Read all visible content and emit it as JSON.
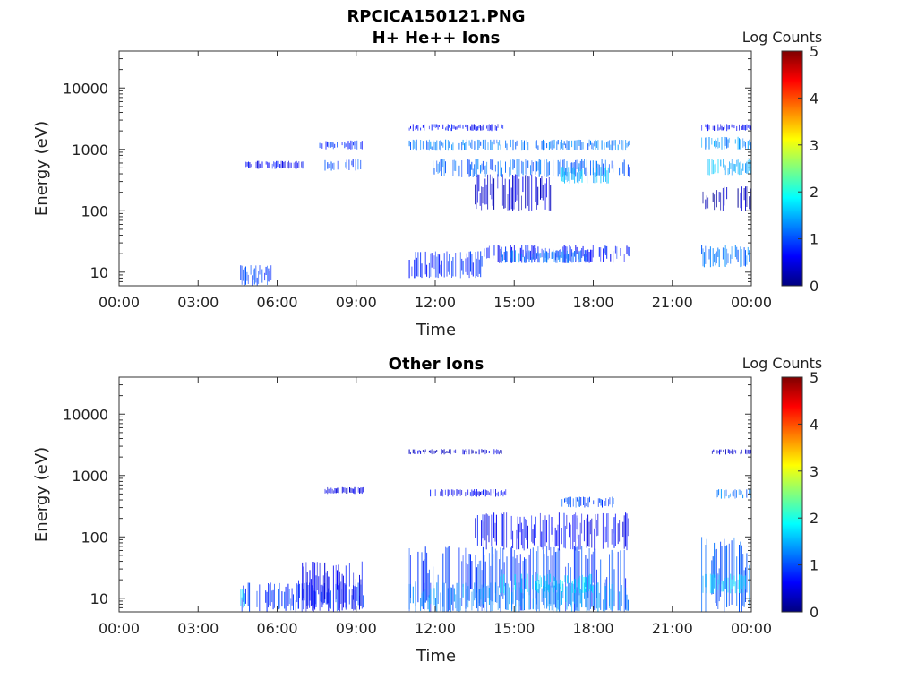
{
  "figure_title": "RPCICA150121.PNG",
  "chart_data": [
    {
      "type": "heatmap",
      "title": "H+ He++ Ions",
      "xlabel": "Time",
      "ylabel": "Energy (eV)",
      "x_ticks": [
        "00:00",
        "03:00",
        "06:00",
        "09:00",
        "12:00",
        "15:00",
        "18:00",
        "21:00",
        "00:00"
      ],
      "xlim_hours": [
        0,
        24
      ],
      "y_scale": "log",
      "ylim": [
        6,
        40000
      ],
      "y_ticks": [
        10,
        100,
        1000,
        10000
      ],
      "y_tick_labels": [
        "10",
        "100",
        "1000",
        "10000"
      ],
      "colorbar": {
        "label": "Log Counts",
        "range": [
          0,
          5
        ],
        "ticks": [
          "0",
          "1",
          "2",
          "3",
          "4",
          "5"
        ]
      },
      "bands": [
        {
          "t_start": 7.6,
          "t_end": 9.3,
          "e_low": 1000,
          "e_high": 1400,
          "log_counts": 0.8
        },
        {
          "t_start": 4.8,
          "t_end": 7.0,
          "e_low": 480,
          "e_high": 650,
          "log_counts": 0.6
        },
        {
          "t_start": 7.8,
          "t_end": 9.2,
          "e_low": 450,
          "e_high": 700,
          "log_counts": 1.0
        },
        {
          "t_start": 4.6,
          "t_end": 5.8,
          "e_low": 6,
          "e_high": 13,
          "log_counts": 0.9
        },
        {
          "t_start": 11.0,
          "t_end": 19.4,
          "e_low": 950,
          "e_high": 1450,
          "log_counts": 1.2
        },
        {
          "t_start": 11.0,
          "t_end": 14.6,
          "e_low": 2000,
          "e_high": 2600,
          "log_counts": 0.6
        },
        {
          "t_start": 11.9,
          "t_end": 19.4,
          "e_low": 350,
          "e_high": 700,
          "log_counts": 1.1
        },
        {
          "t_start": 16.8,
          "t_end": 18.6,
          "e_low": 280,
          "e_high": 520,
          "log_counts": 1.5
        },
        {
          "t_start": 13.5,
          "t_end": 16.5,
          "e_low": 100,
          "e_high": 400,
          "log_counts": 0.4
        },
        {
          "t_start": 11.0,
          "t_end": 13.8,
          "e_low": 8,
          "e_high": 22,
          "log_counts": 0.8
        },
        {
          "t_start": 13.8,
          "t_end": 19.4,
          "e_low": 14,
          "e_high": 28,
          "log_counts": 0.7
        },
        {
          "t_start": 14.5,
          "t_end": 17.8,
          "e_low": 14,
          "e_high": 23,
          "log_counts": 1.2
        },
        {
          "t_start": 22.1,
          "t_end": 24.0,
          "e_low": 1000,
          "e_high": 1600,
          "log_counts": 1.3
        },
        {
          "t_start": 22.1,
          "t_end": 24.0,
          "e_low": 2000,
          "e_high": 2600,
          "log_counts": 0.6
        },
        {
          "t_start": 22.3,
          "t_end": 24.0,
          "e_low": 380,
          "e_high": 700,
          "log_counts": 1.5
        },
        {
          "t_start": 22.1,
          "t_end": 24.0,
          "e_low": 100,
          "e_high": 250,
          "log_counts": 0.3
        },
        {
          "t_start": 22.1,
          "t_end": 24.0,
          "e_low": 12,
          "e_high": 28,
          "log_counts": 1.2
        }
      ]
    },
    {
      "type": "heatmap",
      "title": "Other Ions",
      "xlabel": "Time",
      "ylabel": "Energy (eV)",
      "x_ticks": [
        "00:00",
        "03:00",
        "06:00",
        "09:00",
        "12:00",
        "15:00",
        "18:00",
        "21:00",
        "00:00"
      ],
      "xlim_hours": [
        0,
        24
      ],
      "y_scale": "log",
      "ylim": [
        6,
        40000
      ],
      "y_ticks": [
        10,
        100,
        1000,
        10000
      ],
      "y_tick_labels": [
        "10",
        "100",
        "1000",
        "10000"
      ],
      "colorbar": {
        "label": "Log Counts",
        "range": [
          0,
          5
        ],
        "ticks": [
          "0",
          "1",
          "2",
          "3",
          "4",
          "5"
        ]
      },
      "bands": [
        {
          "t_start": 4.6,
          "t_end": 9.3,
          "e_low": 6,
          "e_high": 18,
          "log_counts": 0.9
        },
        {
          "t_start": 4.6,
          "t_end": 4.8,
          "e_low": 6,
          "e_high": 18,
          "log_counts": 1.7
        },
        {
          "t_start": 6.8,
          "t_end": 9.3,
          "e_low": 6,
          "e_high": 40,
          "log_counts": 0.6
        },
        {
          "t_start": 11.0,
          "t_end": 19.4,
          "e_low": 6,
          "e_high": 70,
          "log_counts": 0.9
        },
        {
          "t_start": 11.0,
          "t_end": 19.4,
          "e_low": 6,
          "e_high": 18,
          "log_counts": 1.3
        },
        {
          "t_start": 14.4,
          "t_end": 18.0,
          "e_low": 12,
          "e_high": 25,
          "log_counts": 1.7
        },
        {
          "t_start": 13.5,
          "t_end": 19.4,
          "e_low": 60,
          "e_high": 250,
          "log_counts": 0.6
        },
        {
          "t_start": 16.8,
          "t_end": 18.8,
          "e_low": 300,
          "e_high": 450,
          "log_counts": 1.0
        },
        {
          "t_start": 11.8,
          "t_end": 14.8,
          "e_low": 450,
          "e_high": 600,
          "log_counts": 0.6
        },
        {
          "t_start": 11.0,
          "t_end": 14.6,
          "e_low": 2200,
          "e_high": 2700,
          "log_counts": 0.4
        },
        {
          "t_start": 7.8,
          "t_end": 9.3,
          "e_low": 500,
          "e_high": 650,
          "log_counts": 0.5
        },
        {
          "t_start": 22.1,
          "t_end": 24.0,
          "e_low": 6,
          "e_high": 100,
          "log_counts": 1.1
        },
        {
          "t_start": 22.1,
          "t_end": 24.0,
          "e_low": 12,
          "e_high": 25,
          "log_counts": 1.6
        },
        {
          "t_start": 22.6,
          "t_end": 24.0,
          "e_low": 420,
          "e_high": 600,
          "log_counts": 1.2
        },
        {
          "t_start": 22.5,
          "t_end": 24.0,
          "e_low": 2200,
          "e_high": 2700,
          "log_counts": 0.4
        }
      ]
    }
  ]
}
